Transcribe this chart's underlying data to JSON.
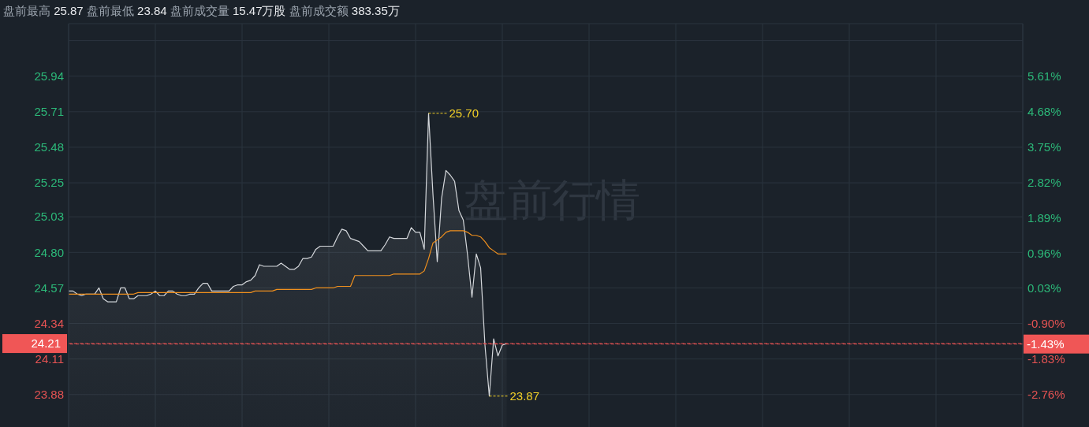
{
  "chart_data": {
    "type": "line",
    "title": "盘前最高 25.87 盘前最低 23.84 盘前成交量 15.47万股 盘前成交额 383.35万",
    "categories": [
      null,
      null,
      null,
      null,
      null,
      null,
      null,
      null,
      null,
      null,
      null,
      null,
      null,
      null,
      null,
      null,
      null,
      null,
      null,
      null,
      null,
      null,
      null,
      null,
      null,
      null,
      null,
      null,
      null,
      null,
      null,
      null,
      null,
      null,
      null,
      null,
      null,
      null,
      null,
      null,
      null,
      null,
      null,
      null,
      null,
      null,
      null,
      null,
      null,
      null,
      null,
      null,
      null,
      null,
      null,
      null,
      null,
      null,
      null,
      null,
      null,
      null,
      null,
      null,
      null,
      null,
      null,
      null,
      null,
      null,
      null,
      null,
      null,
      null,
      null,
      null,
      null,
      null,
      null,
      null,
      null,
      null,
      null,
      null,
      null,
      null,
      null,
      null,
      null,
      null,
      null,
      null,
      null,
      null,
      null,
      null,
      null,
      null,
      null,
      null,
      null,
      null,
      null,
      null,
      null,
      null,
      null,
      null,
      null,
      null,
      null,
      null,
      null,
      null,
      null,
      null,
      null,
      null,
      null,
      null,
      null,
      null,
      null,
      null,
      null,
      null,
      null,
      null,
      null,
      null,
      null,
      null,
      null,
      null,
      null,
      null,
      null,
      null,
      null,
      null,
      null,
      null,
      null,
      null,
      null,
      null,
      null,
      null,
      null,
      null,
      null,
      null,
      null,
      null,
      null,
      null,
      null,
      null,
      null,
      null,
      null,
      null,
      null,
      null,
      null,
      null,
      null,
      null,
      null,
      null,
      null,
      null,
      null,
      null,
      null,
      null,
      null,
      null,
      null,
      null,
      null,
      null,
      null,
      null,
      null,
      null,
      null,
      null,
      null,
      null,
      null,
      null,
      null,
      null,
      null,
      null,
      null,
      null,
      null,
      null,
      null,
      null,
      null,
      null,
      null,
      null,
      null,
      null,
      null,
      null,
      null,
      null,
      null,
      null,
      null,
      null,
      null,
      null,
      null,
      null,
      null
    ],
    "series": [
      {
        "type": "area",
        "color": "#d4d7db",
        "values": [
          24.55,
          24.55,
          24.53,
          24.52,
          24.53,
          24.53,
          24.53,
          24.57,
          24.5,
          24.48,
          24.48,
          24.48,
          24.57,
          24.57,
          24.5,
          24.5,
          24.52,
          24.52,
          24.52,
          24.53,
          24.55,
          24.52,
          24.52,
          24.55,
          24.55,
          24.53,
          24.52,
          24.52,
          24.53,
          24.53,
          24.57,
          24.6,
          24.6,
          24.55,
          24.55,
          24.55,
          24.55,
          24.55,
          24.58,
          24.59,
          24.59,
          24.61,
          24.62,
          24.65,
          24.72,
          24.71,
          24.71,
          24.71,
          24.71,
          24.73,
          24.71,
          24.69,
          24.69,
          24.71,
          24.76,
          24.76,
          24.77,
          24.82,
          24.84,
          24.84,
          24.84,
          24.84,
          24.9,
          24.95,
          24.94,
          24.89,
          24.88,
          24.87,
          24.84,
          24.81,
          24.81,
          24.81,
          24.81,
          24.85,
          24.9,
          24.89,
          24.89,
          24.89,
          24.89,
          24.96,
          24.93,
          24.93,
          24.82,
          25.7,
          25.18,
          24.74,
          25.15,
          25.33,
          25.3,
          25.26,
          25.07,
          25.01,
          24.78,
          24.51,
          24.79,
          24.7,
          24.2,
          23.87,
          24.24,
          24.13,
          24.2,
          24.21,
          null,
          null,
          null,
          null,
          null,
          null,
          null,
          null,
          null,
          null,
          null,
          null,
          null,
          null,
          null,
          null,
          null,
          null,
          null,
          null,
          null,
          null,
          null,
          null,
          null,
          null,
          null,
          null,
          null,
          null,
          null,
          null,
          null,
          null,
          null,
          null,
          null,
          null,
          null,
          null,
          null,
          null,
          null,
          null,
          null,
          null,
          null,
          null,
          null,
          null,
          null,
          null,
          null,
          null,
          null,
          null,
          null,
          null,
          null,
          null,
          null,
          null,
          null,
          null,
          null,
          null,
          null,
          null,
          null,
          null,
          null,
          null,
          null,
          null,
          null,
          null,
          null,
          null,
          null,
          null,
          null,
          null,
          null,
          null,
          null,
          null,
          null,
          null,
          null,
          null,
          null,
          null,
          null,
          null,
          null,
          null,
          null,
          null,
          null,
          null,
          null,
          null,
          null,
          null,
          null,
          null,
          null,
          null,
          null,
          null,
          null,
          null,
          null,
          null,
          null,
          null,
          null,
          null,
          null
        ]
      },
      {
        "color": "#f0901e",
        "values": [
          24.53,
          24.53,
          24.53,
          24.53,
          24.53,
          24.53,
          24.53,
          24.53,
          24.53,
          24.53,
          24.53,
          24.53,
          24.53,
          24.53,
          24.53,
          24.53,
          24.54,
          24.54,
          24.54,
          24.54,
          24.54,
          24.54,
          24.54,
          24.54,
          24.54,
          24.54,
          24.54,
          24.54,
          24.54,
          24.54,
          24.54,
          24.54,
          24.54,
          24.54,
          24.54,
          24.54,
          24.54,
          24.54,
          24.54,
          24.54,
          24.54,
          24.54,
          24.54,
          24.55,
          24.55,
          24.55,
          24.55,
          24.55,
          24.56,
          24.56,
          24.56,
          24.56,
          24.56,
          24.56,
          24.56,
          24.56,
          24.56,
          24.57,
          24.57,
          24.57,
          24.57,
          24.57,
          24.58,
          24.58,
          24.58,
          24.58,
          24.65,
          24.65,
          24.65,
          24.65,
          24.65,
          24.65,
          24.65,
          24.65,
          24.65,
          24.66,
          24.66,
          24.66,
          24.66,
          24.66,
          24.66,
          24.66,
          24.68,
          24.76,
          24.86,
          24.88,
          24.9,
          24.93,
          24.94,
          24.94,
          24.94,
          24.94,
          24.93,
          24.91,
          24.91,
          24.9,
          24.87,
          24.83,
          24.81,
          24.79,
          24.79,
          24.79,
          null,
          null,
          null,
          null,
          null,
          null,
          null,
          null,
          null,
          null,
          null,
          null,
          null,
          null,
          null,
          null,
          null,
          null,
          null,
          null,
          null,
          null,
          null,
          null,
          null,
          null,
          null,
          null,
          null,
          null,
          null,
          null,
          null,
          null,
          null,
          null,
          null,
          null,
          null,
          null,
          null,
          null,
          null,
          null,
          null,
          null,
          null,
          null,
          null,
          null,
          null,
          null,
          null,
          null,
          null,
          null,
          null,
          null,
          null,
          null,
          null,
          null,
          null,
          null,
          null,
          null,
          null,
          null,
          null,
          null,
          null,
          null,
          null,
          null,
          null,
          null,
          null,
          null,
          null,
          null,
          null,
          null,
          null,
          null,
          null,
          null,
          null,
          null,
          null,
          null,
          null,
          null,
          null,
          null,
          null,
          null,
          null,
          null,
          null,
          null,
          null,
          null,
          null,
          null,
          null,
          null,
          null,
          null,
          null,
          null,
          null,
          null,
          null,
          null,
          null,
          null,
          null,
          null,
          null
        ]
      }
    ],
    "ylim": [
      23.67,
      26.28
    ],
    "yticks": [
      {
        "value": 26.17,
        "label": null
      },
      25.94,
      25.71,
      25.48,
      25.25,
      25.03,
      {
        "value": 24.8,
        "label": "24.80"
      },
      24.57,
      24.34,
      24.11,
      23.88
    ],
    "y2lim": [
      -3.61,
      6.99
    ],
    "y2ticks": [
      {
        "value": 5.61,
        "label": "5.61%"
      },
      {
        "value": 4.68,
        "label": "4.68%"
      },
      {
        "value": 3.75,
        "label": "3.75%"
      },
      {
        "value": 2.82,
        "label": "2.82%"
      },
      {
        "value": 1.89,
        "label": "1.89%"
      },
      {
        "value": 0.96,
        "label": "0.96%"
      },
      {
        "value": 0.03,
        "label": "0.03%"
      },
      {
        "value": -0.9,
        "label": "-0.90%"
      },
      {
        "value": -1.83,
        "label": "-1.83%"
      },
      {
        "value": -2.76,
        "label": "-2.76%"
      }
    ],
    "ref_lines": [
      {
        "axis": "y",
        "value": 24.21,
        "label": "24.21",
        "color": "#f05656",
        "line_style": "dashed"
      },
      {
        "axis": "y2",
        "value": -1.43,
        "label": "-1.43%",
        "color": "#f05656",
        "line_style": "dashed"
      }
    ],
    "annotations": [
      "25.70",
      "23.87",
      "盘前行情"
    ],
    "grid": true,
    "marker": "none"
  }
}
